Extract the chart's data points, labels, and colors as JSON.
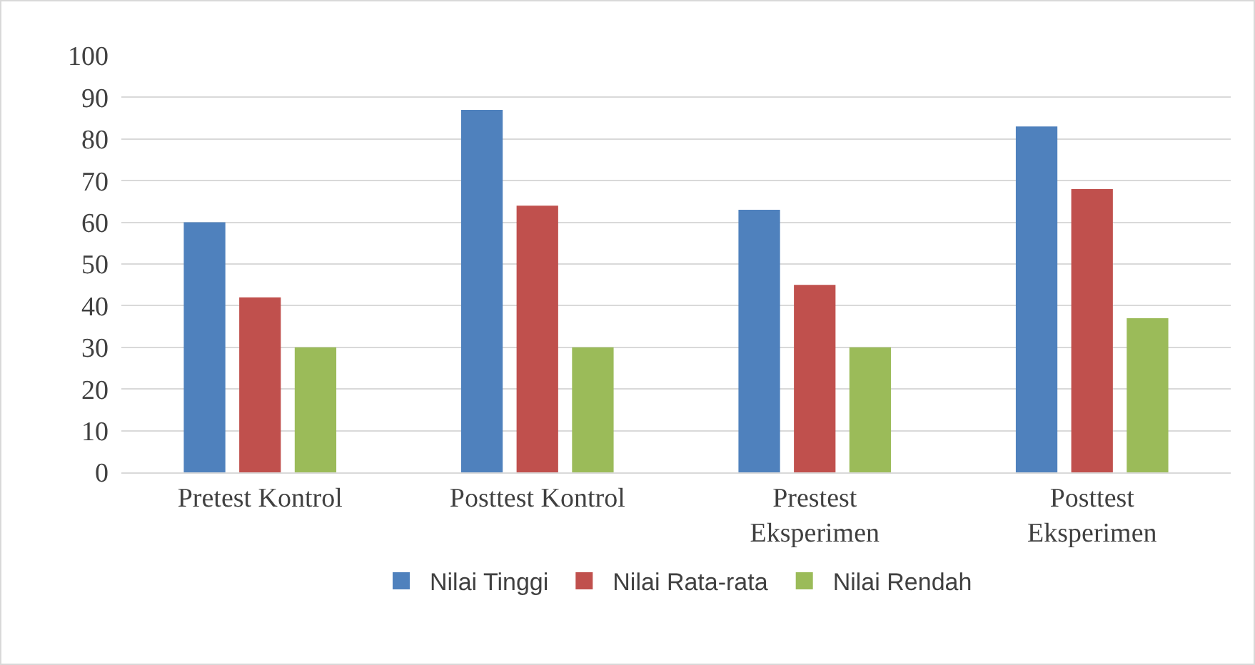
{
  "chart_data": {
    "type": "bar",
    "categories": [
      "Pretest Kontrol",
      "Posttest Kontrol",
      "Prestest Eksperimen",
      "Posttest Eksperimen"
    ],
    "series": [
      {
        "name": "Nilai Tinggi",
        "color": "#4f81bd",
        "values": [
          60,
          87,
          63,
          83
        ]
      },
      {
        "name": "Nilai Rata-rata",
        "color": "#c0504d",
        "values": [
          42,
          64,
          45,
          68
        ]
      },
      {
        "name": "Nilai Rendah",
        "color": "#9bbb59",
        "values": [
          30,
          30,
          30,
          37
        ]
      }
    ],
    "ylim": [
      0,
      100
    ],
    "yticks": [
      0,
      10,
      20,
      30,
      40,
      50,
      60,
      70,
      80,
      90,
      100
    ],
    "grid": "y",
    "legend": "bottom"
  }
}
